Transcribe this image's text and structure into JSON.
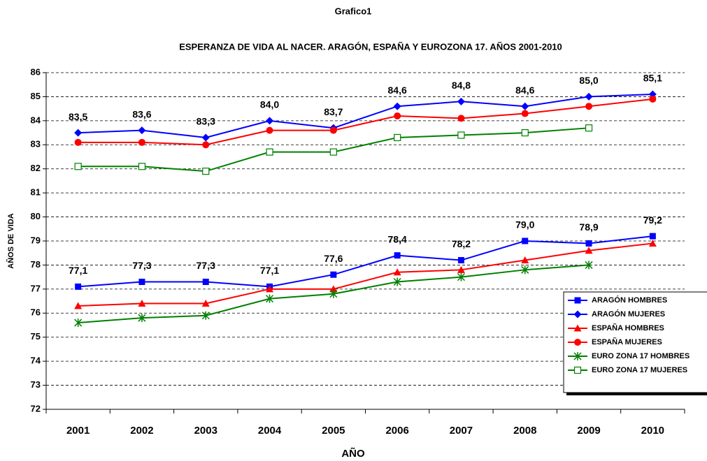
{
  "chart_data": {
    "type": "line",
    "title": "Grafico1",
    "subtitle": "ESPERANZA DE VIDA AL NACER.   ARAGÓN, ESPAÑA Y EUROZONA 17.   AÑOS 2001-2010",
    "x_label": "AÑO",
    "y_label": "AÑOS DE VIDA",
    "categories": [
      "2001",
      "2002",
      "2003",
      "2004",
      "2005",
      "2006",
      "2007",
      "2008",
      "2009",
      "2010"
    ],
    "ylim": [
      72,
      86
    ],
    "yticks": [
      72,
      73,
      74,
      75,
      76,
      77,
      78,
      79,
      80,
      81,
      82,
      83,
      84,
      85,
      86
    ],
    "grid": true,
    "legend": "right",
    "series": [
      {
        "name": "ARAGÓN HOMBRES",
        "color": "#0000ff",
        "marker": "square",
        "values": [
          77.1,
          77.3,
          77.3,
          77.1,
          77.6,
          78.4,
          78.2,
          79.0,
          78.9,
          79.2
        ],
        "value_labels": [
          "77,1",
          "77,3",
          "77,3",
          "77,1",
          "77,6",
          "78,4",
          "78,2",
          "79,0",
          "78,9",
          "79,2"
        ]
      },
      {
        "name": "ARAGÓN MUJERES",
        "color": "#0000ff",
        "marker": "diamond",
        "values": [
          83.5,
          83.6,
          83.3,
          84.0,
          83.7,
          84.6,
          84.8,
          84.6,
          85.0,
          85.1
        ],
        "value_labels": [
          "83,5",
          "83,6",
          "83,3",
          "84,0",
          "83,7",
          "84,6",
          "84,8",
          "84,6",
          "85,0",
          "85,1"
        ]
      },
      {
        "name": "ESPAÑA HOMBRES",
        "color": "#ff0000",
        "marker": "triangle",
        "values": [
          76.3,
          76.4,
          76.4,
          77.0,
          77.0,
          77.7,
          77.8,
          78.2,
          78.6,
          78.9
        ]
      },
      {
        "name": "ESPAÑA MUJERES",
        "color": "#ff0000",
        "marker": "circle",
        "values": [
          83.1,
          83.1,
          83.0,
          83.6,
          83.6,
          84.2,
          84.1,
          84.3,
          84.6,
          84.9
        ]
      },
      {
        "name": "EURO ZONA 17 HOMBRES",
        "color": "#008000",
        "marker": "star",
        "values": [
          75.6,
          75.8,
          75.9,
          76.6,
          76.8,
          77.3,
          77.5,
          77.8,
          78.0,
          null
        ]
      },
      {
        "name": "EURO ZONA 17 MUJERES",
        "color": "#008000",
        "marker": "open-square",
        "values": [
          82.1,
          82.1,
          81.9,
          82.7,
          82.7,
          83.3,
          83.4,
          83.5,
          83.7,
          null
        ]
      }
    ]
  }
}
